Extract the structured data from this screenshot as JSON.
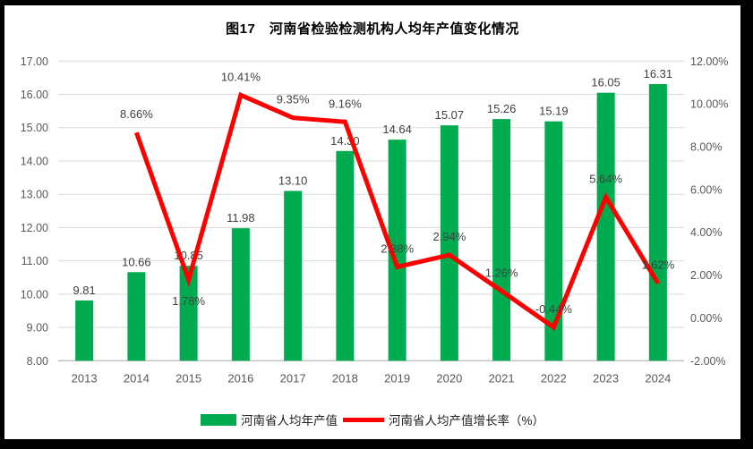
{
  "figure": {
    "title": "图17　河南省检验检测机构人均年产值变化情况",
    "border_color": "#000000",
    "background": "#ffffff"
  },
  "chart_data": {
    "type": "bar+line combo",
    "title": "图17　河南省检验检测机构人均年产值变化情况",
    "categories": [
      "2013",
      "2014",
      "2015",
      "2016",
      "2017",
      "2018",
      "2019",
      "2020",
      "2021",
      "2022",
      "2023",
      "2024"
    ],
    "series": [
      {
        "name": "河南省人均年产值",
        "type": "bar",
        "axis": "left",
        "color": "#00AC4F",
        "values": [
          9.81,
          10.66,
          10.85,
          11.98,
          13.1,
          14.3,
          14.64,
          15.07,
          15.26,
          15.19,
          16.05,
          16.31
        ],
        "labels": [
          "9.81",
          "10.66",
          "10.85",
          "11.98",
          "13.10",
          "14.30",
          "14.64",
          "15.07",
          "15.26",
          "15.19",
          "16.05",
          "16.31"
        ]
      },
      {
        "name": "河南省人均产值增长率（%）",
        "type": "line",
        "axis": "right",
        "color": "#FF0000",
        "values": [
          null,
          8.66,
          1.78,
          10.41,
          9.35,
          9.16,
          2.38,
          2.94,
          1.26,
          -0.44,
          5.64,
          1.62
        ],
        "labels": [
          null,
          "8.66%",
          "1.78%",
          "10.41%",
          "9.35%",
          "9.16%",
          "2.38%",
          "2.94%",
          "1.26%",
          "-0.44%",
          "5.64%",
          "1.62%"
        ],
        "label_positions": [
          null,
          "above",
          "below",
          "above",
          "above",
          "above",
          "above",
          "above",
          "above",
          "above",
          "above",
          "above"
        ]
      }
    ],
    "left_axis": {
      "min": 8,
      "max": 17,
      "step": 1,
      "ticks": [
        "8.00",
        "9.00",
        "10.00",
        "11.00",
        "12.00",
        "13.00",
        "14.00",
        "15.00",
        "16.00",
        "17.00"
      ]
    },
    "right_axis": {
      "min": -2,
      "max": 12,
      "step": 2,
      "ticks": [
        "-2.00%",
        "0.00%",
        "2.00%",
        "4.00%",
        "6.00%",
        "8.00%",
        "10.00%",
        "12.00%"
      ]
    },
    "grid": "horizontal",
    "legend_position": "bottom",
    "colors": {
      "grid": "#D9D9D9",
      "axis_line": "#BFBFBF",
      "tick_label": "#595959",
      "data_label": "#404040"
    }
  }
}
